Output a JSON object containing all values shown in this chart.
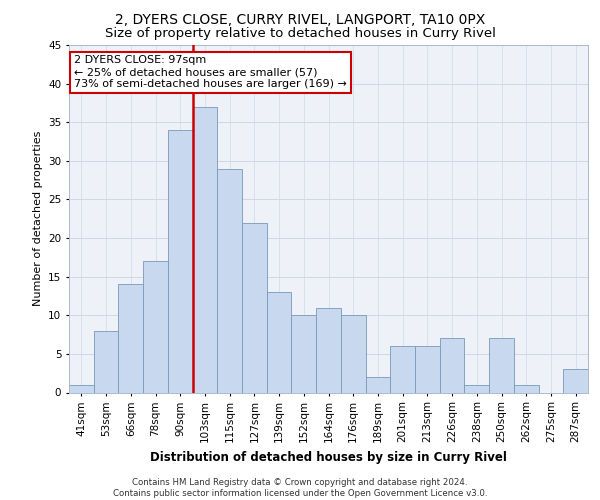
{
  "title1": "2, DYERS CLOSE, CURRY RIVEL, LANGPORT, TA10 0PX",
  "title2": "Size of property relative to detached houses in Curry Rivel",
  "xlabel": "Distribution of detached houses by size in Curry Rivel",
  "ylabel": "Number of detached properties",
  "categories": [
    "41sqm",
    "53sqm",
    "66sqm",
    "78sqm",
    "90sqm",
    "103sqm",
    "115sqm",
    "127sqm",
    "139sqm",
    "152sqm",
    "164sqm",
    "176sqm",
    "189sqm",
    "201sqm",
    "213sqm",
    "226sqm",
    "238sqm",
    "250sqm",
    "262sqm",
    "275sqm",
    "287sqm"
  ],
  "values": [
    1,
    8,
    14,
    17,
    34,
    37,
    29,
    22,
    13,
    10,
    11,
    10,
    2,
    6,
    6,
    7,
    1,
    7,
    1,
    0,
    3
  ],
  "bar_color": "#c8d8ee",
  "bar_edge_color": "#7799bb",
  "grid_color": "#d0d8e8",
  "background_color": "#eef2f8",
  "vline_color": "#cc0000",
  "vline_x": 4.5,
  "annotation_text": "2 DYERS CLOSE: 97sqm\n← 25% of detached houses are smaller (57)\n73% of semi-detached houses are larger (169) →",
  "annotation_box_edgecolor": "#cc0000",
  "ylim": [
    0,
    45
  ],
  "yticks": [
    0,
    5,
    10,
    15,
    20,
    25,
    30,
    35,
    40,
    45
  ],
  "footer_text": "Contains HM Land Registry data © Crown copyright and database right 2024.\nContains public sector information licensed under the Open Government Licence v3.0.",
  "title1_fontsize": 10,
  "title2_fontsize": 9.5,
  "xlabel_fontsize": 8.5,
  "ylabel_fontsize": 8,
  "tick_fontsize": 7.5,
  "annotation_fontsize": 8
}
